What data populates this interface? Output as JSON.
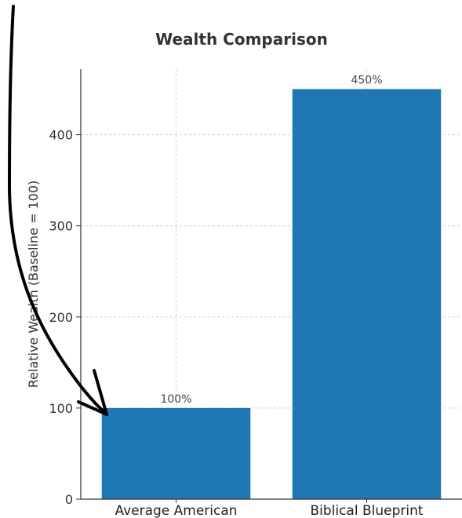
{
  "chart_data": {
    "type": "bar",
    "title": "Wealth Comparison",
    "xlabel": "",
    "ylabel": "Relative Wealth (Baseline = 100)",
    "categories": [
      "Average American",
      "Biblical Blueprint"
    ],
    "values": [
      100,
      450
    ],
    "data_labels": [
      "100%",
      "450%"
    ],
    "yticks": [
      0,
      100,
      200,
      300,
      400
    ],
    "ylim": [
      0,
      472
    ],
    "grid": true,
    "bar_color": "#1f77b4",
    "annotation_color": "#000000"
  }
}
